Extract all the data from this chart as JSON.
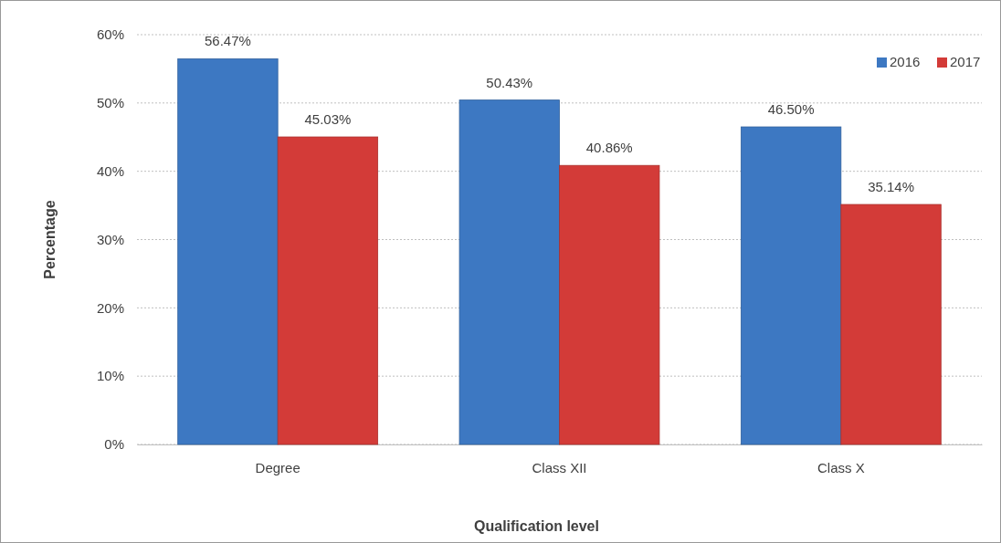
{
  "chart_data": {
    "type": "bar",
    "xlabel": "Qualification level",
    "ylabel": "Percentage",
    "categories": [
      "Degree",
      "Class XII",
      "Class X"
    ],
    "series": [
      {
        "name": "2016",
        "color": "#3d78c2",
        "values": [
          56.47,
          50.43,
          46.5
        ],
        "value_labels": [
          "56.47%",
          "50.43%",
          "46.50%"
        ]
      },
      {
        "name": "2017",
        "color": "#d33b38",
        "values": [
          45.03,
          40.86,
          35.14
        ],
        "value_labels": [
          "45.03%",
          "40.86%",
          "35.14%"
        ]
      }
    ],
    "ylim": [
      0,
      60
    ],
    "yticks": [
      {
        "value": 0,
        "label": "0%"
      },
      {
        "value": 10,
        "label": "10%"
      },
      {
        "value": 20,
        "label": "20%"
      },
      {
        "value": 30,
        "label": "30%"
      },
      {
        "value": 40,
        "label": "40%"
      },
      {
        "value": 50,
        "label": "50%"
      },
      {
        "value": 60,
        "label": "60%"
      }
    ],
    "grid": "y",
    "legend": "top right"
  }
}
